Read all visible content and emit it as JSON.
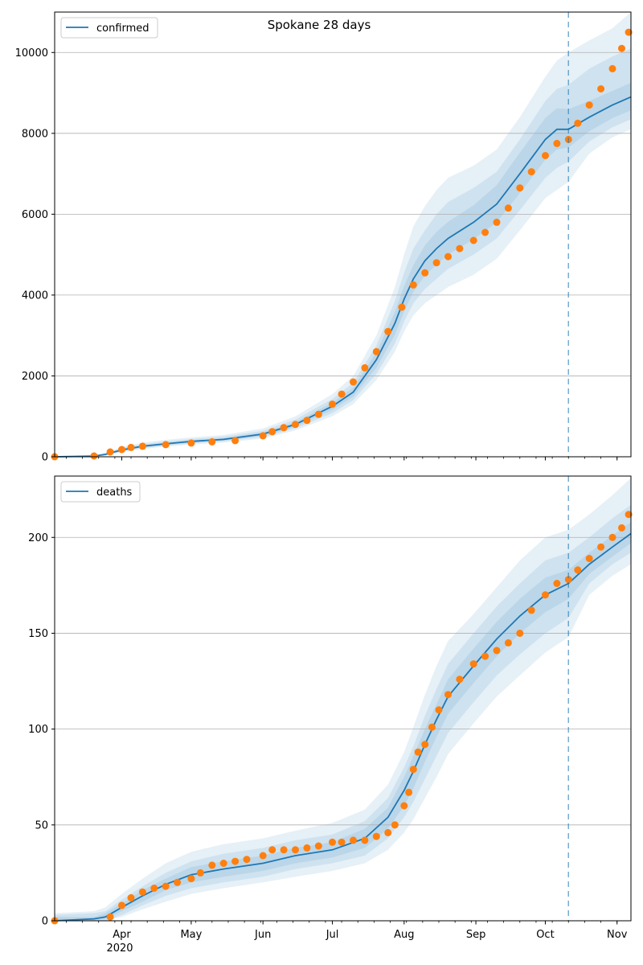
{
  "title": "Spokane 28 days",
  "colors": {
    "model_line": "#1f77b4",
    "observed": "#ff7f0e",
    "band": "#1f77b4",
    "grid": "#b0b0b0",
    "forecast_marker": "#1f77b4"
  },
  "chart_data": [
    {
      "type": "line",
      "legend": "confirmed",
      "legend_position": "top-left",
      "grid": "horizontal",
      "xlim": [
        "2020-03-03",
        "2020-11-07"
      ],
      "ylim": [
        0,
        11000
      ],
      "yticks": [
        0,
        2000,
        4000,
        6000,
        8000,
        10000
      ],
      "forecast_start": "2020-10-11",
      "model": {
        "x": [
          "2020-03-03",
          "2020-03-20",
          "2020-03-25",
          "2020-04-01",
          "2020-04-10",
          "2020-04-20",
          "2020-05-01",
          "2020-05-15",
          "2020-06-01",
          "2020-06-15",
          "2020-07-01",
          "2020-07-10",
          "2020-07-20",
          "2020-07-28",
          "2020-08-01",
          "2020-08-05",
          "2020-08-10",
          "2020-08-15",
          "2020-08-20",
          "2020-08-31",
          "2020-09-10",
          "2020-09-20",
          "2020-10-01",
          "2020-10-06",
          "2020-10-11",
          "2020-10-20",
          "2020-10-30",
          "2020-11-07"
        ],
        "y": [
          0,
          15,
          60,
          170,
          260,
          320,
          380,
          430,
          560,
          800,
          1250,
          1600,
          2400,
          3300,
          3900,
          4400,
          4850,
          5150,
          5400,
          5800,
          6250,
          7000,
          7850,
          8100,
          8100,
          8400,
          8700,
          8900
        ],
        "bands": [
          {
            "lower": [
              0,
              5,
              30,
              110,
              190,
              250,
              300,
              350,
              450,
              650,
              1000,
              1300,
              1900,
              2600,
              3100,
              3500,
              3800,
              4000,
              4200,
              4500,
              4900,
              5600,
              6400,
              6600,
              6800,
              7500,
              7900,
              8100
            ],
            "upper": [
              20,
              40,
              100,
              240,
              350,
              420,
              480,
              540,
              700,
              1000,
              1550,
              2000,
              3000,
              4200,
              5000,
              5700,
              6200,
              6600,
              6900,
              7200,
              7600,
              8400,
              9400,
              9800,
              10000,
              10300,
              10600,
              11000
            ]
          },
          {
            "lower": [
              0,
              8,
              40,
              130,
              215,
              275,
              330,
              380,
              490,
              700,
              1080,
              1400,
              2050,
              2800,
              3350,
              3800,
              4150,
              4400,
              4650,
              5000,
              5400,
              6100,
              6900,
              7150,
              7300,
              7800,
              8150,
              8350
            ],
            "upper": [
              15,
              30,
              85,
              215,
              315,
              380,
              440,
              500,
              640,
              920,
              1430,
              1830,
              2750,
              3850,
              4550,
              5150,
              5600,
              6000,
              6300,
              6650,
              7050,
              7850,
              8800,
              9100,
              9200,
              9600,
              9900,
              10100
            ]
          },
          {
            "lower": [
              0,
              10,
              48,
              148,
              235,
              295,
              352,
              402,
              520,
              745,
              1160,
              1490,
              2200,
              3020,
              3600,
              4080,
              4480,
              4750,
              5000,
              5380,
              5800,
              6520,
              7350,
              7600,
              7650,
              8050,
              8380,
              8570
            ],
            "upper": [
              10,
              22,
              72,
              192,
              285,
              345,
              408,
              458,
              600,
              855,
              1340,
              1710,
              2580,
              3580,
              4220,
              4740,
              5230,
              5560,
              5810,
              6220,
              6720,
              7520,
              8380,
              8620,
              8600,
              8800,
              9050,
              9250
            ]
          }
        ]
      },
      "observed": {
        "x": [
          "2020-03-03",
          "2020-03-20",
          "2020-03-27",
          "2020-04-01",
          "2020-04-05",
          "2020-04-10",
          "2020-04-20",
          "2020-05-01",
          "2020-05-10",
          "2020-05-20",
          "2020-06-01",
          "2020-06-05",
          "2020-06-10",
          "2020-06-15",
          "2020-06-20",
          "2020-06-25",
          "2020-07-01",
          "2020-07-05",
          "2020-07-10",
          "2020-07-15",
          "2020-07-20",
          "2020-07-25",
          "2020-07-31",
          "2020-08-05",
          "2020-08-10",
          "2020-08-15",
          "2020-08-20",
          "2020-08-25",
          "2020-08-31",
          "2020-09-05",
          "2020-09-10",
          "2020-09-15",
          "2020-09-20",
          "2020-09-25",
          "2020-10-01",
          "2020-10-06",
          "2020-10-11",
          "2020-10-15",
          "2020-10-20",
          "2020-10-25",
          "2020-10-30",
          "2020-11-03",
          "2020-11-06"
        ],
        "y": [
          0,
          20,
          120,
          180,
          230,
          260,
          300,
          340,
          370,
          400,
          520,
          620,
          720,
          800,
          900,
          1050,
          1300,
          1550,
          1850,
          2200,
          2600,
          3100,
          3700,
          4250,
          4550,
          4800,
          4950,
          5150,
          5350,
          5550,
          5800,
          6150,
          6650,
          7050,
          7450,
          7750,
          7850,
          8250,
          8700,
          9100,
          9600,
          10100,
          10500
        ]
      }
    },
    {
      "type": "line",
      "legend": "deaths",
      "legend_position": "top-left",
      "grid": "horizontal",
      "xlim": [
        "2020-03-03",
        "2020-11-07"
      ],
      "ylim": [
        0,
        232
      ],
      "yticks": [
        0,
        50,
        100,
        150,
        200
      ],
      "xtick_labels": [
        "Apr",
        "May",
        "Jun",
        "Jul",
        "Aug",
        "Sep",
        "Oct",
        "Nov"
      ],
      "xtick_dates": [
        "2020-04-01",
        "2020-05-01",
        "2020-06-01",
        "2020-07-01",
        "2020-08-01",
        "2020-09-01",
        "2020-10-01",
        "2020-11-01"
      ],
      "year_label": "2020",
      "forecast_start": "2020-10-11",
      "model": {
        "x": [
          "2020-03-03",
          "2020-03-20",
          "2020-03-25",
          "2020-04-01",
          "2020-04-10",
          "2020-04-20",
          "2020-05-01",
          "2020-05-15",
          "2020-06-01",
          "2020-06-15",
          "2020-07-01",
          "2020-07-15",
          "2020-07-25",
          "2020-08-01",
          "2020-08-05",
          "2020-08-10",
          "2020-08-15",
          "2020-08-20",
          "2020-08-31",
          "2020-09-10",
          "2020-09-20",
          "2020-10-01",
          "2020-10-11",
          "2020-10-20",
          "2020-10-30",
          "2020-11-07"
        ],
        "y": [
          0,
          1,
          2,
          7,
          13,
          19,
          24,
          27,
          30,
          34,
          37,
          43,
          54,
          68,
          78,
          92,
          105,
          117,
          133,
          147,
          159,
          170,
          176,
          186,
          195,
          202
        ],
        "bands": [
          {
            "lower": [
              0,
              0,
              0,
              2,
              6,
              10,
              14,
              17,
              20,
              23,
              26,
              30,
              37,
              46,
              53,
              64,
              75,
              87,
              103,
              117,
              128,
              140,
              148,
              170,
              180,
              186
            ],
            "upper": [
              4,
              5,
              7,
              14,
              22,
              30,
              36,
              40,
              43,
              47,
              51,
              58,
              71,
              88,
              101,
              118,
              133,
              146,
              160,
              174,
              188,
              200,
              204,
              212,
              222,
              231
            ]
          },
          {
            "lower": [
              0,
              0,
              0,
              3,
              8,
              13,
              17,
              20,
              23,
              27,
              30,
              34,
              43,
              54,
              62,
              74,
              86,
              98,
              114,
              128,
              139,
              150,
              158,
              176,
              186,
              192
            ],
            "upper": [
              3,
              4,
              5,
              11,
              18,
              25,
              31,
              35,
              38,
              42,
              45,
              52,
              64,
              80,
              91,
              107,
              121,
              134,
              150,
              164,
              176,
              188,
              192,
              200,
              210,
              217
            ]
          },
          {
            "lower": [
              0,
              0,
              1,
              5,
              10,
              16,
              20,
              23,
              26,
              30,
              33,
              38,
              48,
              60,
              69,
              83,
              96,
              108,
              124,
              138,
              150,
              161,
              168,
              181,
              190,
              197
            ],
            "upper": [
              2,
              2,
              4,
              9,
              16,
              22,
              28,
              31,
              34,
              38,
              41,
              48,
              59,
              75,
              86,
              100,
              113,
              126,
              142,
              156,
              168,
              179,
              183,
              192,
              201,
              208
            ]
          }
        ]
      },
      "observed": {
        "x": [
          "2020-03-03",
          "2020-03-27",
          "2020-04-01",
          "2020-04-05",
          "2020-04-10",
          "2020-04-15",
          "2020-04-20",
          "2020-04-25",
          "2020-05-01",
          "2020-05-05",
          "2020-05-10",
          "2020-05-15",
          "2020-05-20",
          "2020-05-25",
          "2020-06-01",
          "2020-06-05",
          "2020-06-10",
          "2020-06-15",
          "2020-06-20",
          "2020-06-25",
          "2020-07-01",
          "2020-07-05",
          "2020-07-10",
          "2020-07-15",
          "2020-07-20",
          "2020-07-25",
          "2020-07-28",
          "2020-08-01",
          "2020-08-03",
          "2020-08-05",
          "2020-08-07",
          "2020-08-10",
          "2020-08-13",
          "2020-08-16",
          "2020-08-20",
          "2020-08-25",
          "2020-08-31",
          "2020-09-05",
          "2020-09-10",
          "2020-09-15",
          "2020-09-20",
          "2020-09-25",
          "2020-10-01",
          "2020-10-06",
          "2020-10-11",
          "2020-10-15",
          "2020-10-20",
          "2020-10-25",
          "2020-10-30",
          "2020-11-03",
          "2020-11-06"
        ],
        "y": [
          0,
          2,
          8,
          12,
          15,
          17,
          18,
          20,
          22,
          25,
          29,
          30,
          31,
          32,
          34,
          37,
          37,
          37,
          38,
          39,
          41,
          41,
          42,
          42,
          44,
          46,
          50,
          60,
          67,
          79,
          88,
          92,
          101,
          110,
          118,
          126,
          134,
          138,
          141,
          145,
          150,
          162,
          170,
          176,
          178,
          183,
          189,
          195,
          200,
          205,
          212
        ]
      }
    }
  ]
}
